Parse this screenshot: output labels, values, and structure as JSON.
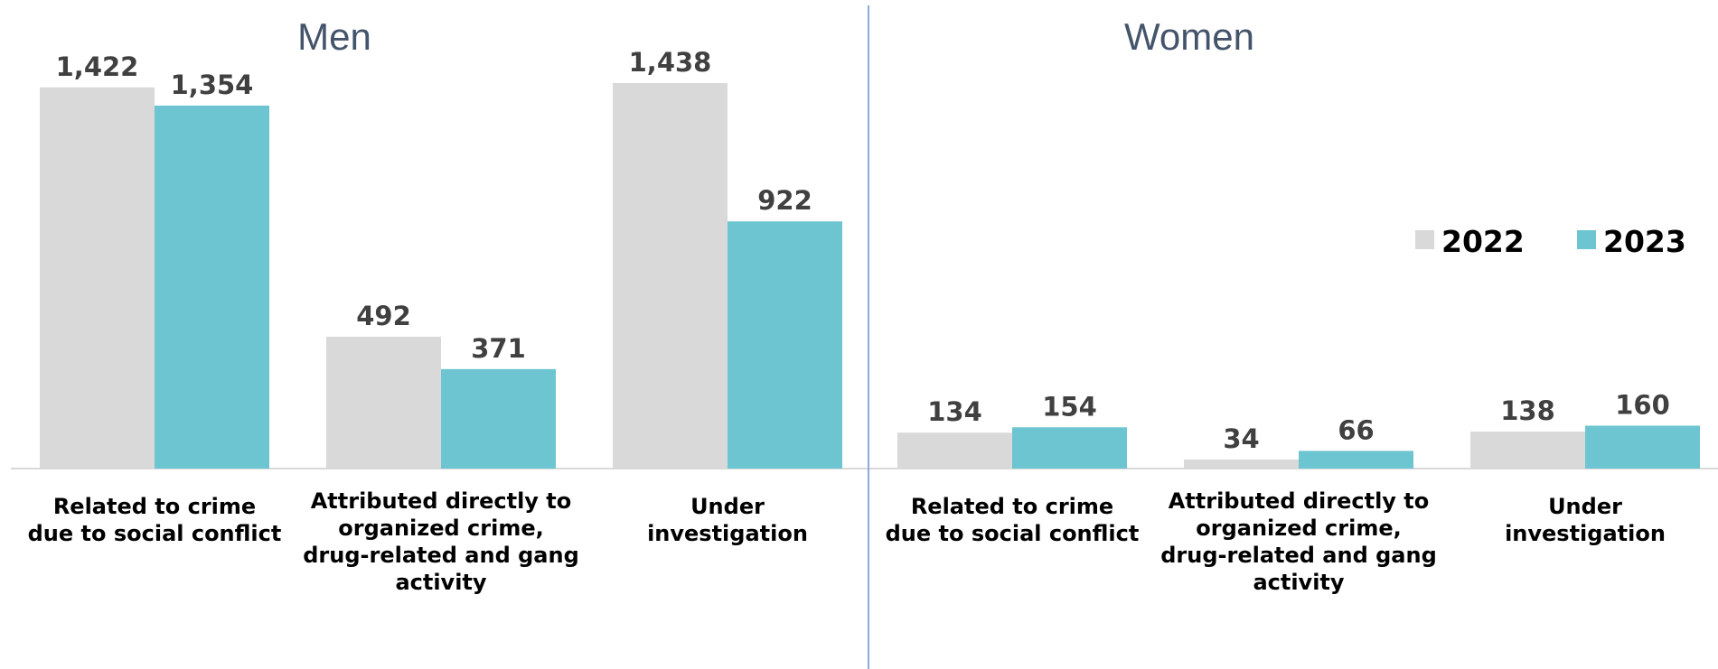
{
  "chart_data": {
    "type": "bar",
    "categories": [
      [
        "Related to crime",
        "due to social conflict"
      ],
      [
        "Attributed directly to",
        "organized crime,",
        "drug-related and gang",
        "activity"
      ],
      [
        "Under",
        "investigation"
      ]
    ],
    "panels": [
      {
        "title": "Men",
        "series": [
          {
            "name": "2022",
            "values": [
              1422,
              492,
              1438
            ],
            "labels": [
              "1,422",
              "492",
              "1,438"
            ]
          },
          {
            "name": "2023",
            "values": [
              1354,
              371,
              922
            ],
            "labels": [
              "1,354",
              "371",
              "922"
            ]
          }
        ]
      },
      {
        "title": "Women",
        "series": [
          {
            "name": "2022",
            "values": [
              134,
              34,
              138
            ],
            "labels": [
              "134",
              "34",
              "138"
            ]
          },
          {
            "name": "2023",
            "values": [
              154,
              66,
              160
            ],
            "labels": [
              "154",
              "66",
              "160"
            ]
          }
        ]
      }
    ],
    "legend": {
      "position": "right",
      "entries": [
        "2022",
        "2023"
      ]
    },
    "colors": {
      "2022": "#d9d9d9",
      "2023": "#6cc5d0",
      "divider": "#8eaadb",
      "baseline": "#d9d9d9"
    },
    "ylim": [
      0,
      1438
    ],
    "grid": false
  }
}
